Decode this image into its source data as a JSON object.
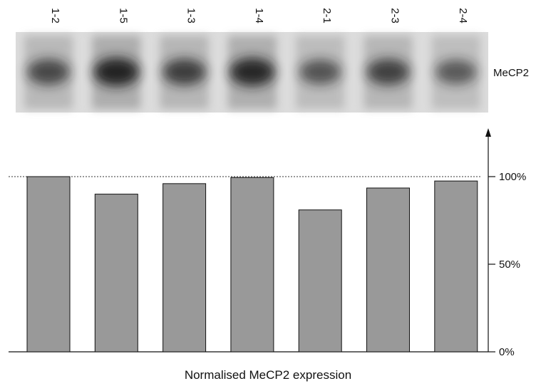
{
  "chart_data": {
    "type": "bar",
    "categories": [
      "1-2",
      "1-5",
      "1-3",
      "1-4",
      "2-1",
      "2-3",
      "2-4"
    ],
    "values": [
      100,
      90,
      96,
      99.5,
      81,
      93.5,
      97.5
    ],
    "ylim": [
      0,
      100
    ],
    "yticks": [
      {
        "value": 0,
        "label": "0%"
      },
      {
        "value": 50,
        "label": "50%"
      },
      {
        "value": 100,
        "label": "100%"
      }
    ],
    "xlabel": "Normalised MeCP2 expression",
    "reference_line": {
      "value": 100,
      "style": "dotted"
    },
    "bar_color": "#999999",
    "blot": {
      "label": "MeCP2",
      "band_intensities": [
        0.62,
        1.0,
        0.72,
        0.95,
        0.5,
        0.68,
        0.45
      ],
      "background_color": "#d6d6d6",
      "band_color": "#1a1a1a"
    }
  }
}
